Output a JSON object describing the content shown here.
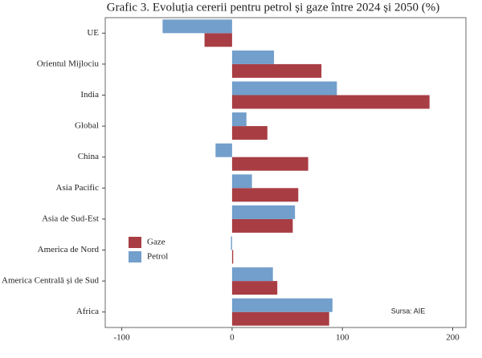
{
  "chart_data": {
    "type": "barh",
    "title": "Grafic 3. Evoluția cererii pentru petrol și gaze între 2024 și 2050 (%)",
    "categories": [
      "UE",
      "Orientul Mijlociu",
      "India",
      "Global",
      "China",
      "Asia Pacific",
      "Asia de Sud-Est",
      "America de Nord",
      "America Centrală și de Sud",
      "Africa"
    ],
    "series": [
      {
        "name": "Gaze",
        "color": "#a83e44",
        "values": [
          -25,
          81,
          179,
          32,
          69,
          60,
          55,
          1,
          41,
          88
        ]
      },
      {
        "name": "Petrol",
        "color": "#729fcb",
        "values": [
          -63,
          38,
          95,
          13,
          -15,
          18,
          57,
          -1,
          37,
          91
        ]
      }
    ],
    "xlim": [
      -115,
      212
    ],
    "xticks": [
      -100,
      0,
      100,
      200
    ],
    "annotation": "Sursa: AIE",
    "legend": "lower-left"
  }
}
